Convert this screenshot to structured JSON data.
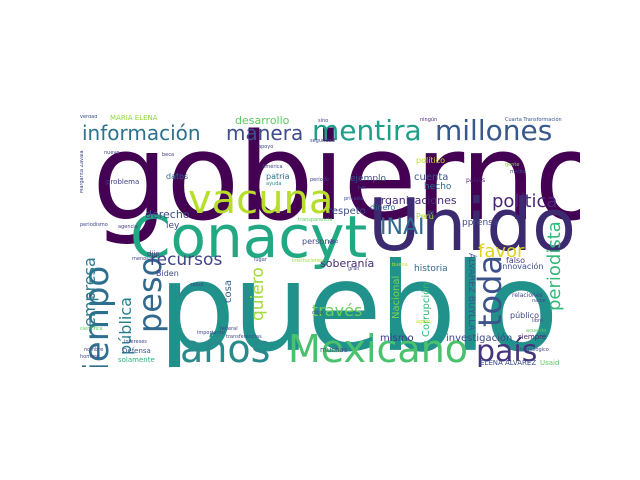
{
  "words": [
    {
      "text": "gobierno",
      "color": "#440154"
    },
    {
      "text": "pueblo",
      "color": "#21918c"
    },
    {
      "text": "Unidos",
      "color": "#3b2a6f"
    },
    {
      "text": "Conacyt",
      "color": "#23a884"
    },
    {
      "text": "años",
      "color": "#2a8a8b"
    },
    {
      "text": "Mexicano",
      "color": "#4ac16d"
    },
    {
      "text": "tiempo",
      "color": "#2d6f8e"
    },
    {
      "text": "vacuna",
      "color": "#b6de2b"
    },
    {
      "text": "millones",
      "color": "#38598c"
    },
    {
      "text": "mentira",
      "color": "#1f9e89"
    },
    {
      "text": "información",
      "color": "#2c728e"
    },
    {
      "text": "manera",
      "color": "#3e4c8a"
    },
    {
      "text": "peso",
      "color": "#31688e"
    },
    {
      "text": "país",
      "color": "#46337e"
    },
    {
      "text": "toda",
      "color": "#3b528b"
    },
    {
      "text": "INAI",
      "color": "#30688e"
    },
    {
      "text": "favor",
      "color": "#e0d220"
    },
    {
      "text": "política",
      "color": "#482878"
    },
    {
      "text": "periodista",
      "color": "#35b779"
    },
    {
      "text": "recursos",
      "color": "#414487"
    },
    {
      "text": "empresa",
      "color": "#2a7b8e"
    },
    {
      "text": "pública",
      "color": "#277f8e"
    },
    {
      "text": "quiero",
      "color": "#a0da39"
    },
    {
      "text": "través",
      "color": "#6ccd5a"
    },
    {
      "text": "desarrollo",
      "color": "#5ec962"
    },
    {
      "text": "soberanía",
      "color": "#472c7a"
    },
    {
      "text": "organizaciones",
      "color": "#472d7b"
    },
    {
      "text": "investigación",
      "color": "#3e4a89"
    },
    {
      "text": "respeto",
      "color": "#3d4e8a"
    },
    {
      "text": "Corrupción",
      "color": "#35b779"
    },
    {
      "text": "Nacional",
      "color": "#7ad151"
    },
    {
      "text": "historia",
      "color": "#31688e"
    },
    {
      "text": "pprensa",
      "color": "#3f4788"
    },
    {
      "text": "ÁLVAREZ BUYLLA",
      "color": "#3a548c"
    },
    {
      "text": "derecho",
      "color": "#3f4889"
    },
    {
      "text": "mismo",
      "color": "#443b84"
    },
    {
      "text": "cosa",
      "color": "#34608d"
    },
    {
      "text": "recursos2",
      "color": "#414487"
    },
    {
      "text": "cuenta",
      "color": "#3b528b"
    },
    {
      "text": "hecho",
      "color": "#2e6e8e"
    },
    {
      "text": "ejemplo",
      "color": "#3b528b"
    },
    {
      "text": "datos",
      "color": "#31688e"
    },
    {
      "text": "patria",
      "color": "#2e6f8e"
    },
    {
      "text": "ley",
      "color": "#404588"
    },
    {
      "text": "Biden",
      "color": "#3f4788"
    },
    {
      "text": "persona",
      "color": "#3f4889"
    },
    {
      "text": "MARÍA ELENA",
      "color": "#8fd744"
    },
    {
      "text": "político",
      "color": "#c2df23"
    },
    {
      "text": "países",
      "color": "#481f70"
    },
    {
      "text": "Perú",
      "color": "#a8db34"
    },
    {
      "text": "dinero",
      "color": "#2f6b8e"
    },
    {
      "text": "innovación",
      "color": "#3d4d8a"
    },
    {
      "text": "falso",
      "color": "#433d84"
    },
    {
      "text": "público",
      "color": "#3f4889"
    },
    {
      "text": "relaciones",
      "color": "#404588"
    },
    {
      "text": "siempre",
      "color": "#482475"
    },
    {
      "text": "ELENA ÁLVAREZ",
      "color": "#3d4e8a"
    },
    {
      "text": "Usaid",
      "color": "#5ec962"
    },
    {
      "text": "Defensa",
      "color": "#3a548c"
    },
    {
      "text": "solamente",
      "color": "#2db27d"
    },
    {
      "text": "problema",
      "color": "#404588"
    },
    {
      "text": "muchas",
      "color": "#3a548c"
    },
    {
      "text": "dijo",
      "color": "#433d84"
    }
  ],
  "small_words": [
    "verdad",
    "Margarita Zavala",
    "periodismo",
    "nuevo",
    "beca",
    "apoyo",
    "sino",
    "ningún",
    "seguridad",
    "Cuarta Transformación",
    "América",
    "ayuda",
    "período",
    "gente",
    "medio",
    "agencia",
    "menos",
    "salud",
    "federal",
    "importante",
    "transferencias",
    "digo",
    "tan",
    "privada",
    "gran",
    "sido",
    "hombre",
    "nadie",
    "acuerdo",
    "tecnológico",
    "científica",
    "intereses",
    "instituciones",
    "transparencia",
    "lugar",
    "buena",
    "aguas",
    "nombre",
    "libre",
    "1%"
  ]
}
